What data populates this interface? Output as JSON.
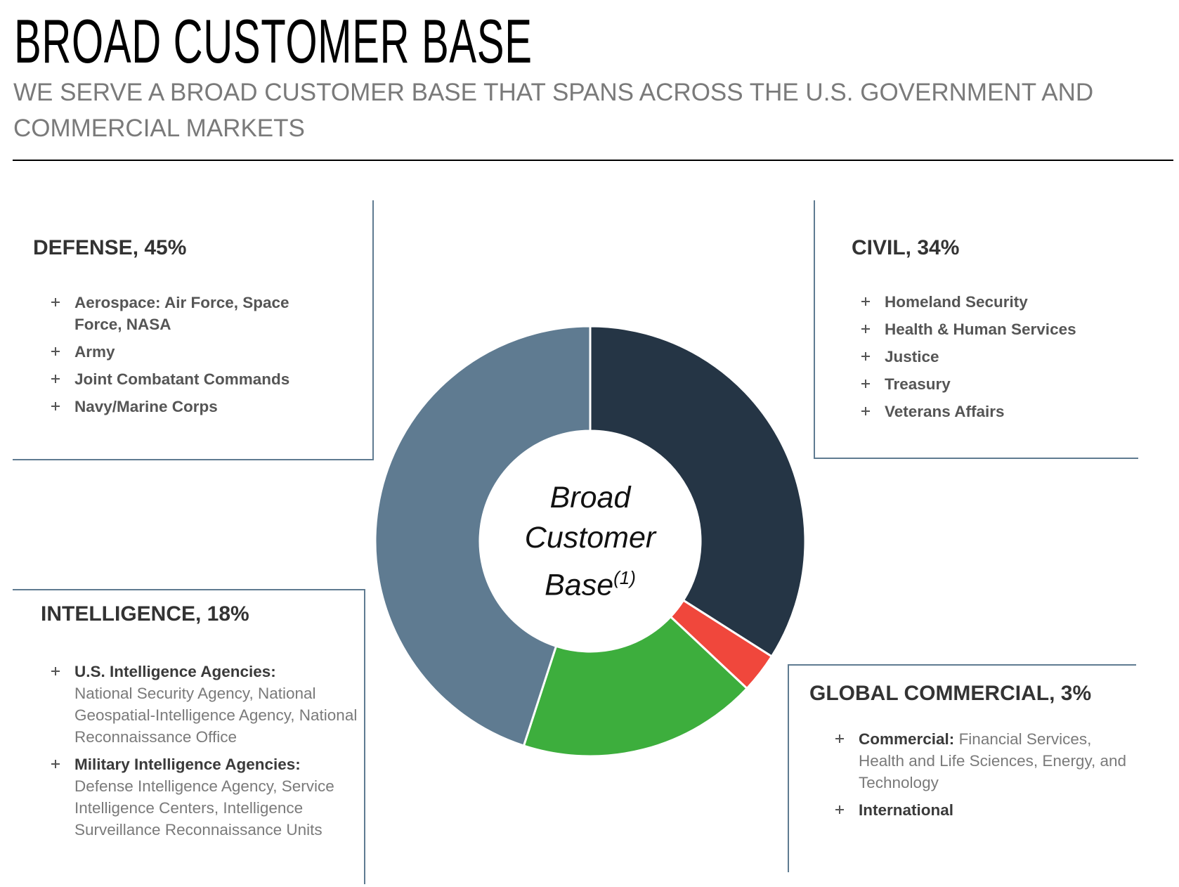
{
  "header": {
    "title": "BROAD CUSTOMER BASE",
    "subtitle": "WE SERVE A BROAD CUSTOMER BASE THAT SPANS ACROSS THE U.S. GOVERNMENT AND COMMERCIAL MARKETS"
  },
  "chart_data": {
    "type": "donut",
    "center_label": "Broad Customer Base",
    "center_note": "(1)",
    "categories": [
      "CIVIL, 34%",
      "GLOBAL COMMERCIAL, 3%",
      "INTELLIGENCE, 18%",
      "DEFENSE, 45%"
    ],
    "values": [
      34,
      3,
      18,
      45
    ],
    "colors": [
      "#253545",
      "#f0473c",
      "#3dae3d",
      "#5f7b91"
    ]
  },
  "panels": [
    {
      "items": [
        {
          "lead": "Homeland Security"
        },
        {
          "lead": "Health & Human Services"
        },
        {
          "lead": "Justice"
        },
        {
          "lead": "Treasury"
        },
        {
          "lead": "Veterans Affairs"
        }
      ]
    },
    {
      "items": [
        {
          "lead": "Commercial:",
          "text": "Financial Services, Health and Life Sciences, Energy, and Technology"
        },
        {
          "lead": "International"
        }
      ]
    },
    {
      "items": [
        {
          "lead": "U.S. Intelligence Agencies:",
          "text": "National Security Agency, National Geospatial-Intelligence Agency, National Reconnaissance Office"
        },
        {
          "lead": "Military Intelligence Agencies:",
          "text": "Defense Intelligence Agency, Service Intelligence Centers, Intelligence Surveillance Reconnaissance Units"
        }
      ]
    },
    {
      "items": [
        {
          "lead": "Aerospace: Air Force, Space Force, NASA"
        },
        {
          "lead": "Army"
        },
        {
          "lead": "Joint Combatant Commands"
        },
        {
          "lead": "Navy/Marine Corps"
        }
      ]
    }
  ]
}
